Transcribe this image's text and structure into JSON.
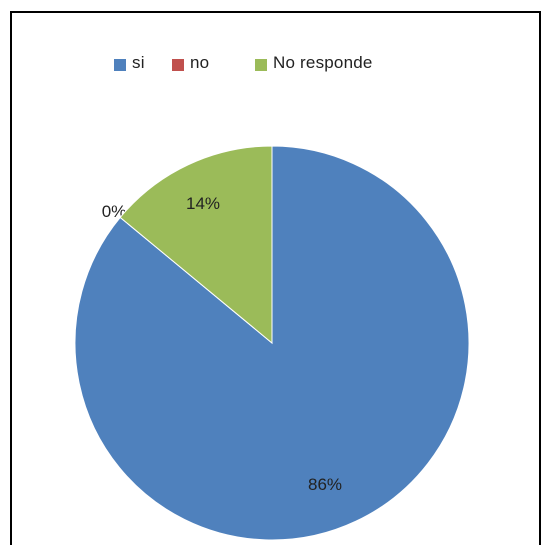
{
  "chart_data": {
    "type": "pie",
    "categories": [
      "si",
      "no",
      "No responde"
    ],
    "values": [
      86,
      0,
      14
    ],
    "value_labels": [
      "86%",
      "0%",
      "14%"
    ],
    "colors": [
      "#4f81bd",
      "#c0504d",
      "#9bbb59"
    ],
    "legend_position": "top",
    "start_angle_deg": 0,
    "direction": "clockwise"
  }
}
